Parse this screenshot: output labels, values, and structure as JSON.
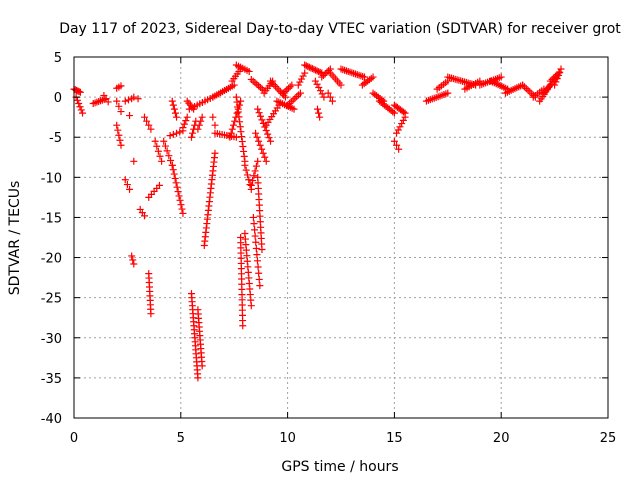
{
  "chart_data": {
    "type": "scatter",
    "title": "Day 117 of 2023, Sidereal Day-to-day VTEC variation (SDTVAR) for receiver grot",
    "xlabel": "GPS time / hours",
    "ylabel": "SDTVAR / TECUs",
    "xlim": [
      0,
      25
    ],
    "ylim": [
      -40,
      5
    ],
    "xticks": [
      0,
      5,
      10,
      15,
      20,
      25
    ],
    "yticks": [
      5,
      0,
      -5,
      -10,
      -15,
      -20,
      -25,
      -30,
      -35,
      -40
    ],
    "grid": true,
    "marker": "+",
    "color": "#ff0000",
    "segments": [
      {
        "x": [
          0.0,
          0.3
        ],
        "y": [
          1.0,
          0.6
        ],
        "n": 6
      },
      {
        "x": [
          0.1,
          0.4
        ],
        "y": [
          0.0,
          -2.0
        ],
        "n": 6
      },
      {
        "x": [
          0.9,
          1.5
        ],
        "y": [
          -0.8,
          -0.2
        ],
        "n": 8
      },
      {
        "x": [
          1.4,
          1.6
        ],
        "y": [
          0.2,
          -0.6
        ],
        "n": 3
      },
      {
        "x": [
          2.0,
          2.2
        ],
        "y": [
          1.1,
          1.4
        ],
        "n": 3
      },
      {
        "x": [
          2.0,
          2.2
        ],
        "y": [
          -0.5,
          -1.8
        ],
        "n": 3
      },
      {
        "x": [
          2.0,
          2.2
        ],
        "y": [
          -3.5,
          -6.0
        ],
        "n": 5
      },
      {
        "x": [
          2.4,
          2.7
        ],
        "y": [
          -0.5,
          -0.2
        ],
        "n": 3
      },
      {
        "x": [
          2.4,
          2.6
        ],
        "y": [
          -10.3,
          -11.5
        ],
        "n": 3
      },
      {
        "x": [
          2.7,
          2.8
        ],
        "y": [
          -19.8,
          -20.8
        ],
        "n": 3
      },
      {
        "x": [
          2.8,
          2.8
        ],
        "y": [
          -8.0,
          -8.0
        ],
        "n": 1
      },
      {
        "x": [
          2.6,
          2.6
        ],
        "y": [
          -2.3,
          -2.3
        ],
        "n": 1
      },
      {
        "x": [
          2.8,
          3.0
        ],
        "y": [
          0.0,
          -0.2
        ],
        "n": 2
      },
      {
        "x": [
          3.1,
          3.3
        ],
        "y": [
          -14.0,
          -14.8
        ],
        "n": 3
      },
      {
        "x": [
          3.3,
          3.6
        ],
        "y": [
          -2.5,
          -4.0
        ],
        "n": 4
      },
      {
        "x": [
          3.5,
          3.6
        ],
        "y": [
          -22.0,
          -27.0
        ],
        "n": 10
      },
      {
        "x": [
          3.5,
          4.0
        ],
        "y": [
          -12.5,
          -11.0
        ],
        "n": 5
      },
      {
        "x": [
          3.8,
          4.1
        ],
        "y": [
          -5.5,
          -8.0
        ],
        "n": 5
      },
      {
        "x": [
          4.2,
          4.6
        ],
        "y": [
          -5.5,
          -8.5
        ],
        "n": 6
      },
      {
        "x": [
          4.6,
          5.1
        ],
        "y": [
          -8.5,
          -14.5
        ],
        "n": 12
      },
      {
        "x": [
          4.6,
          4.8
        ],
        "y": [
          -0.5,
          -2.5
        ],
        "n": 5
      },
      {
        "x": [
          4.5,
          5.1
        ],
        "y": [
          -4.8,
          -4.2
        ],
        "n": 5
      },
      {
        "x": [
          5.1,
          5.3
        ],
        "y": [
          -3.8,
          -2.5
        ],
        "n": 4
      },
      {
        "x": [
          5.3,
          5.6
        ],
        "y": [
          -0.5,
          -1.5
        ],
        "n": 5
      },
      {
        "x": [
          5.5,
          5.7
        ],
        "y": [
          -5.0,
          -3.0
        ],
        "n": 5
      },
      {
        "x": [
          5.8,
          6.0
        ],
        "y": [
          -4.0,
          -2.5
        ],
        "n": 4
      },
      {
        "x": [
          5.4,
          6.5
        ],
        "y": [
          -1.5,
          0.0
        ],
        "n": 10
      },
      {
        "x": [
          5.5,
          5.8
        ],
        "y": [
          -24.5,
          -35.0
        ],
        "n": 22
      },
      {
        "x": [
          5.8,
          6.0
        ],
        "y": [
          -26.5,
          -33.5
        ],
        "n": 14
      },
      {
        "x": [
          6.1,
          6.6
        ],
        "y": [
          -18.5,
          -7.0
        ],
        "n": 22
      },
      {
        "x": [
          6.5,
          7.5
        ],
        "y": [
          0.0,
          1.5
        ],
        "n": 12
      },
      {
        "x": [
          6.5,
          6.6
        ],
        "y": [
          -2.5,
          -3.5
        ],
        "n": 2
      },
      {
        "x": [
          6.6,
          7.6
        ],
        "y": [
          -4.5,
          -5.0
        ],
        "n": 10
      },
      {
        "x": [
          7.3,
          7.8
        ],
        "y": [
          -5.0,
          -0.5
        ],
        "n": 10
      },
      {
        "x": [
          7.6,
          8.0
        ],
        "y": [
          0.0,
          -8.0
        ],
        "n": 14
      },
      {
        "x": [
          7.8,
          7.9
        ],
        "y": [
          -17.5,
          -28.5
        ],
        "n": 18
      },
      {
        "x": [
          7.4,
          7.8
        ],
        "y": [
          2.0,
          3.5
        ],
        "n": 6
      },
      {
        "x": [
          7.6,
          8.2
        ],
        "y": [
          4.0,
          3.2
        ],
        "n": 7
      },
      {
        "x": [
          8.0,
          8.3
        ],
        "y": [
          -8.5,
          -11.5
        ],
        "n": 6
      },
      {
        "x": [
          8.0,
          8.3
        ],
        "y": [
          -17.0,
          -26.0
        ],
        "n": 14
      },
      {
        "x": [
          8.3,
          8.6
        ],
        "y": [
          -11.0,
          -8.0
        ],
        "n": 6
      },
      {
        "x": [
          8.3,
          8.9
        ],
        "y": [
          2.2,
          0.8
        ],
        "n": 8
      },
      {
        "x": [
          8.4,
          8.7
        ],
        "y": [
          -15.0,
          -23.5
        ],
        "n": 12
      },
      {
        "x": [
          8.5,
          9.0
        ],
        "y": [
          -4.5,
          -8.0
        ],
        "n": 8
      },
      {
        "x": [
          8.6,
          9.2
        ],
        "y": [
          -1.5,
          -5.5
        ],
        "n": 10
      },
      {
        "x": [
          8.6,
          8.8
        ],
        "y": [
          -10.0,
          -19.0
        ],
        "n": 14
      },
      {
        "x": [
          8.9,
          9.3
        ],
        "y": [
          0.5,
          2.0
        ],
        "n": 6
      },
      {
        "x": [
          9.0,
          9.6
        ],
        "y": [
          -3.5,
          -1.0
        ],
        "n": 8
      },
      {
        "x": [
          9.2,
          9.9
        ],
        "y": [
          2.0,
          0.0
        ],
        "n": 10
      },
      {
        "x": [
          9.5,
          10.3
        ],
        "y": [
          -0.5,
          -1.5
        ],
        "n": 10
      },
      {
        "x": [
          9.8,
          10.2
        ],
        "y": [
          0.5,
          1.5
        ],
        "n": 6
      },
      {
        "x": [
          10.0,
          10.6
        ],
        "y": [
          -1.0,
          0.5
        ],
        "n": 8
      },
      {
        "x": [
          10.5,
          10.8
        ],
        "y": [
          1.5,
          3.0
        ],
        "n": 5
      },
      {
        "x": [
          10.8,
          11.6
        ],
        "y": [
          4.0,
          3.0
        ],
        "n": 12
      },
      {
        "x": [
          11.3,
          11.7
        ],
        "y": [
          2.0,
          0.0
        ],
        "n": 6
      },
      {
        "x": [
          11.4,
          11.5
        ],
        "y": [
          -1.5,
          -2.5
        ],
        "n": 3
      },
      {
        "x": [
          11.6,
          12.0
        ],
        "y": [
          2.5,
          3.5
        ],
        "n": 6
      },
      {
        "x": [
          11.9,
          12.1
        ],
        "y": [
          0.5,
          -0.5
        ],
        "n": 3
      },
      {
        "x": [
          12.0,
          12.5
        ],
        "y": [
          3.0,
          1.5
        ],
        "n": 7
      },
      {
        "x": [
          12.5,
          13.6
        ],
        "y": [
          3.5,
          2.5
        ],
        "n": 14
      },
      {
        "x": [
          13.5,
          14.0
        ],
        "y": [
          1.5,
          2.5
        ],
        "n": 7
      },
      {
        "x": [
          14.0,
          14.5
        ],
        "y": [
          0.5,
          -0.5
        ],
        "n": 7
      },
      {
        "x": [
          14.3,
          15.0
        ],
        "y": [
          -0.5,
          -2.0
        ],
        "n": 10
      },
      {
        "x": [
          15.0,
          15.5
        ],
        "y": [
          -1.0,
          -2.0
        ],
        "n": 8
      },
      {
        "x": [
          15.1,
          15.5
        ],
        "y": [
          -4.5,
          -2.5
        ],
        "n": 6
      },
      {
        "x": [
          15.0,
          15.2
        ],
        "y": [
          -5.5,
          -6.5
        ],
        "n": 3
      },
      {
        "x": [
          16.5,
          17.5
        ],
        "y": [
          -0.5,
          0.5
        ],
        "n": 12
      },
      {
        "x": [
          17.0,
          17.5
        ],
        "y": [
          1.0,
          2.0
        ],
        "n": 6
      },
      {
        "x": [
          17.5,
          18.8
        ],
        "y": [
          2.5,
          1.5
        ],
        "n": 16
      },
      {
        "x": [
          18.3,
          19.0
        ],
        "y": [
          1.0,
          2.0
        ],
        "n": 8
      },
      {
        "x": [
          19.0,
          20.0
        ],
        "y": [
          1.5,
          2.5
        ],
        "n": 12
      },
      {
        "x": [
          19.5,
          20.3
        ],
        "y": [
          2.0,
          1.0
        ],
        "n": 10
      },
      {
        "x": [
          20.2,
          21.0
        ],
        "y": [
          0.5,
          1.5
        ],
        "n": 10
      },
      {
        "x": [
          21.0,
          21.6
        ],
        "y": [
          1.5,
          0.0
        ],
        "n": 8
      },
      {
        "x": [
          21.5,
          22.0
        ],
        "y": [
          0.0,
          1.0
        ],
        "n": 6
      },
      {
        "x": [
          21.8,
          22.3
        ],
        "y": [
          -0.5,
          1.5
        ],
        "n": 8
      },
      {
        "x": [
          22.0,
          22.6
        ],
        "y": [
          0.5,
          2.5
        ],
        "n": 8
      },
      {
        "x": [
          22.3,
          22.7
        ],
        "y": [
          2.0,
          3.0
        ],
        "n": 6
      },
      {
        "x": [
          22.5,
          22.8
        ],
        "y": [
          1.5,
          3.5
        ],
        "n": 6
      }
    ]
  }
}
